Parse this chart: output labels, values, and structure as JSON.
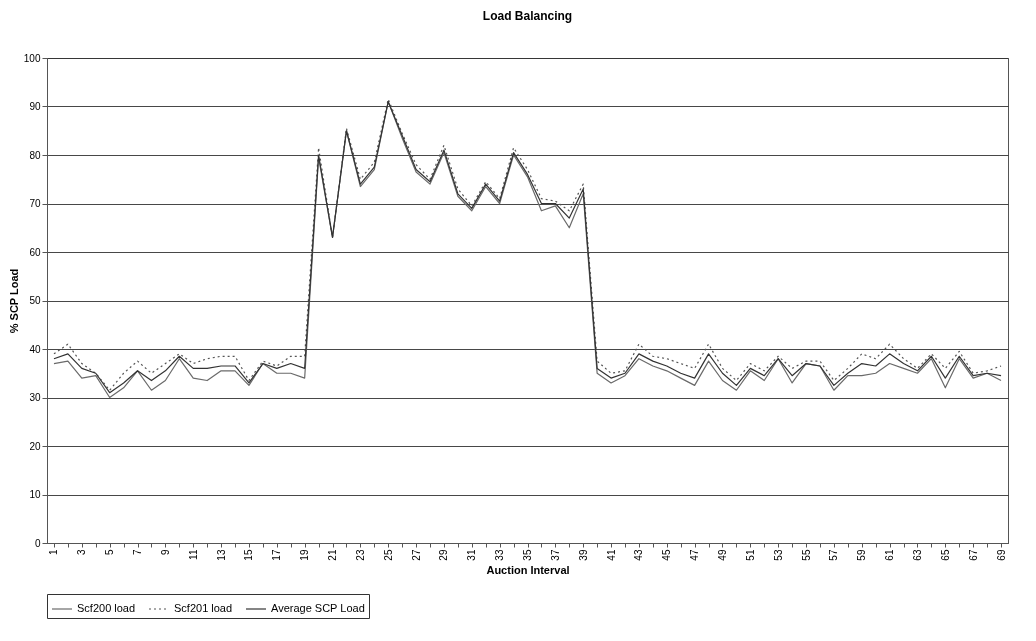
{
  "chart_data": {
    "type": "line",
    "title": "Load Balancing",
    "xlabel": "Auction Interval",
    "ylabel": "% SCP Load",
    "categories": [
      "1",
      null,
      "3",
      null,
      "5",
      null,
      "7",
      null,
      "9",
      null,
      "11",
      null,
      "13",
      null,
      "15",
      null,
      "17",
      null,
      "19",
      null,
      "21",
      null,
      "23",
      null,
      "25",
      null,
      "27",
      null,
      "29",
      null,
      "31",
      null,
      "33",
      null,
      "35",
      null,
      "37",
      null,
      "39",
      null,
      "41",
      null,
      "43",
      null,
      "45",
      null,
      "47",
      null,
      "49",
      null,
      "51",
      null,
      "53",
      null,
      "55",
      null,
      "57",
      null,
      "59",
      null,
      "61",
      null,
      "63",
      null,
      "65",
      null,
      "67",
      null,
      "69"
    ],
    "series": [
      {
        "name": "Scf200 load",
        "color": "#6a6a6a",
        "line_style": "solid",
        "values": [
          37,
          37.5,
          34,
          34.5,
          30,
          32,
          35.5,
          31.5,
          33.5,
          38,
          34,
          33.5,
          35.5,
          35.5,
          32.5,
          37,
          35,
          35,
          34,
          79.5,
          63,
          85,
          73.5,
          77,
          91,
          83.5,
          76.5,
          74,
          80.5,
          71.5,
          68.5,
          73.5,
          70,
          80,
          75.5,
          68.5,
          69.5,
          65,
          72,
          35,
          33,
          34.5,
          38,
          36.5,
          35.5,
          34,
          32.5,
          37.5,
          33.5,
          31.5,
          35.5,
          33.5,
          38,
          33,
          37,
          36.5,
          31.5,
          34.5,
          34.5,
          35,
          37,
          36,
          35,
          38,
          32,
          38,
          34,
          35,
          33.5
        ]
      },
      {
        "name": "Scf201 load",
        "color": "#555555",
        "line_style": "dotted",
        "values": [
          39,
          41,
          37,
          35,
          31.5,
          35,
          37.5,
          35,
          37,
          39,
          37,
          38,
          38.5,
          38.5,
          33.5,
          37.5,
          36.5,
          38.5,
          38.5,
          81.5,
          63,
          85.5,
          75,
          78.5,
          91.5,
          84.5,
          78,
          75,
          82,
          73,
          69.5,
          74.5,
          71,
          81.5,
          77,
          71,
          70.5,
          68.5,
          74,
          37.5,
          35,
          35.5,
          41,
          38.5,
          38,
          37,
          36,
          41,
          36,
          33.5,
          37,
          35.5,
          38.5,
          36,
          37.5,
          37.5,
          33.5,
          36,
          39,
          38,
          41,
          38,
          36,
          39,
          36,
          39.5,
          35,
          35.5,
          36.5
        ]
      },
      {
        "name": "Average SCP Load",
        "color": "#333333",
        "line_style": "solid",
        "values": [
          38,
          39,
          36,
          35,
          31,
          33,
          35.5,
          33.5,
          35.5,
          38.5,
          36,
          36,
          36.5,
          36.5,
          33,
          37,
          36,
          37,
          36,
          80,
          63,
          85,
          74,
          77.5,
          91,
          84,
          77,
          74.5,
          81,
          72,
          69,
          74,
          70.5,
          80.5,
          76,
          70,
          70,
          67,
          73,
          36,
          34,
          35,
          39,
          37.5,
          36.5,
          35,
          34,
          39,
          35,
          32.5,
          36,
          34.5,
          38,
          34.5,
          37,
          36.5,
          32.5,
          35,
          37,
          36.5,
          39,
          37,
          35.5,
          38.5,
          34,
          38.5,
          34.5,
          35,
          34.5
        ]
      }
    ],
    "ylim": [
      0,
      100
    ],
    "yticks": [
      0,
      10,
      20,
      30,
      40,
      50,
      60,
      70,
      80,
      90,
      100
    ],
    "grid": "y",
    "legend": "bottom",
    "marker": "none"
  }
}
